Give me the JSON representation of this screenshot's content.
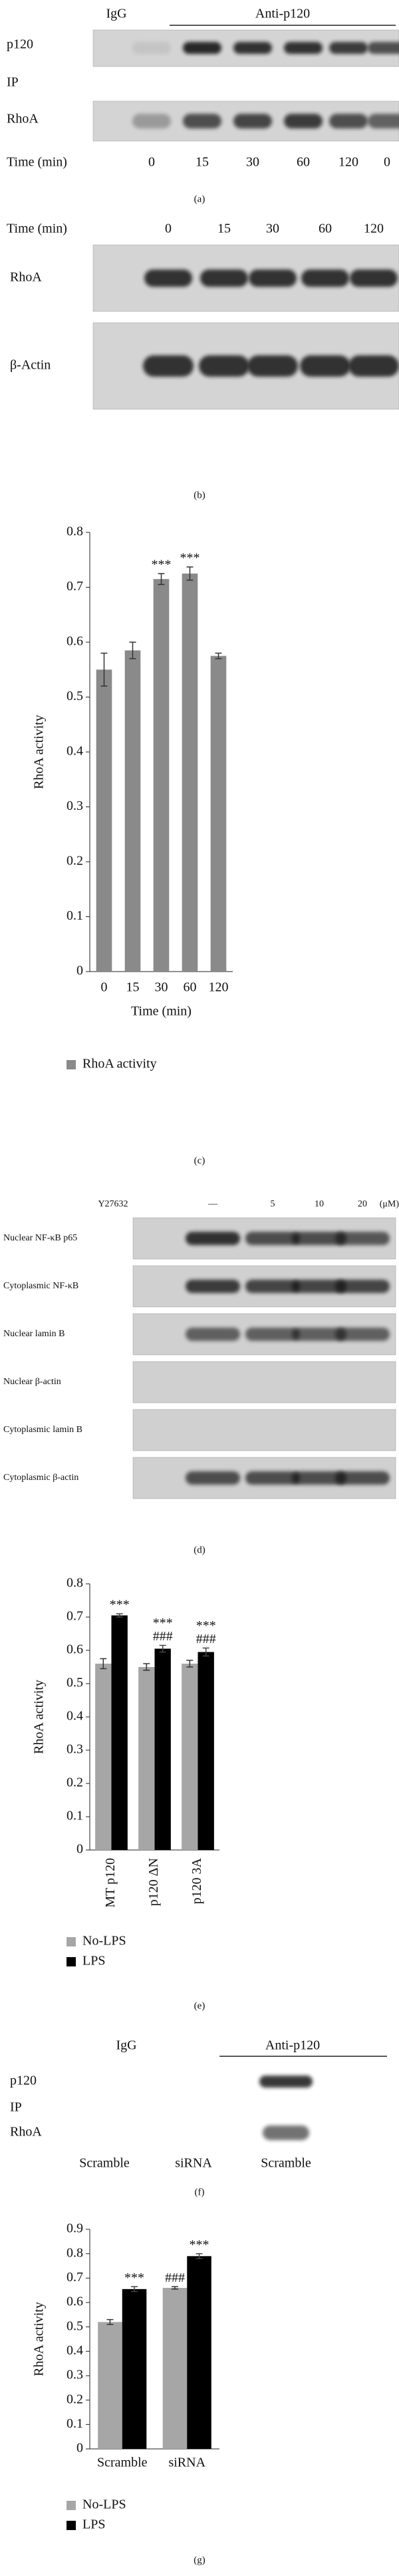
{
  "panel_a": {
    "igg": "IgG",
    "antibody": "Anti-p120",
    "rows": [
      "p120",
      "RhoA"
    ],
    "ip": "IP",
    "lane_title": "Time (min)",
    "lanes": [
      "0",
      "15",
      "30",
      "60",
      "120",
      "0"
    ],
    "caption": "(a)"
  },
  "panel_b": {
    "lane_title": "Time (min)",
    "lanes": [
      "0",
      "15",
      "30",
      "60",
      "120"
    ],
    "rows": [
      "RhoA",
      "β-Actin"
    ],
    "caption": "(b)"
  },
  "panel_d": {
    "treatment": "Y27632",
    "lanes": [
      "—",
      "5",
      "10",
      "20"
    ],
    "unit": "(μM)",
    "rows": [
      "Nuclear NF-κB p65",
      "Cytoplasmic NF-κB",
      "Nuclear lamin B",
      "Nuclear β-actin",
      "Cytoplasmic lamin B",
      "Cytoplasmic β-actin"
    ],
    "caption": "(d)"
  },
  "panel_f": {
    "igg": "IgG",
    "antibody": "Anti-p120",
    "rows": [
      "p120",
      "RhoA"
    ],
    "ip": "IP",
    "lanes": [
      "Scramble",
      "siRNA",
      "Scramble"
    ],
    "caption": "(f)"
  },
  "chart_data": [
    {
      "type": "bar",
      "caption": "(c)",
      "ylabel": "RhoA activity",
      "xlabel": "Time (min)",
      "categories": [
        "0",
        "15",
        "30",
        "60",
        "120"
      ],
      "series": [
        {
          "name": "RhoA activity",
          "color": "#8a8a8a",
          "values": [
            0.55,
            0.585,
            0.715,
            0.725,
            0.575
          ],
          "errors": [
            0.03,
            0.015,
            0.01,
            0.012,
            0.005
          ],
          "annotations": [
            [],
            [],
            [
              "***"
            ],
            [
              "***"
            ],
            []
          ]
        }
      ],
      "ylim": [
        0,
        0.8
      ],
      "yticks": [
        0,
        0.1,
        0.2,
        0.3,
        0.4,
        0.5,
        0.6,
        0.7,
        0.8
      ],
      "legend": "bottom"
    },
    {
      "type": "bar",
      "caption": "(e)",
      "ylabel": "RhoA activity",
      "categories": [
        "MT p120",
        "p120 ΔN",
        "p120 3A"
      ],
      "series": [
        {
          "name": "No-LPS",
          "color": "#a6a6a6",
          "values": [
            0.56,
            0.55,
            0.56
          ],
          "errors": [
            0.015,
            0.01,
            0.01
          ],
          "annotations": [
            [],
            [],
            []
          ]
        },
        {
          "name": "LPS",
          "color": "#000000",
          "values": [
            0.705,
            0.605,
            0.595
          ],
          "errors": [
            0.005,
            0.01,
            0.012
          ],
          "annotations": [
            [
              "***"
            ],
            [
              "###",
              "***"
            ],
            [
              "###",
              "***"
            ]
          ]
        }
      ],
      "ylim": [
        0,
        0.8
      ],
      "yticks": [
        0,
        0.1,
        0.2,
        0.3,
        0.4,
        0.5,
        0.6,
        0.7,
        0.8
      ],
      "legend": "bottom"
    },
    {
      "type": "bar",
      "caption": "(g)",
      "ylabel": "RhoA activity",
      "categories": [
        "Scramble",
        "siRNA"
      ],
      "series": [
        {
          "name": "No-LPS",
          "color": "#a6a6a6",
          "values": [
            0.52,
            0.66
          ],
          "errors": [
            0.01,
            0.005
          ],
          "annotations": [
            [],
            [
              "###"
            ]
          ]
        },
        {
          "name": "LPS",
          "color": "#000000",
          "values": [
            0.655,
            0.79
          ],
          "errors": [
            0.01,
            0.01
          ],
          "annotations": [
            [
              "***"
            ],
            [
              "***"
            ]
          ]
        }
      ],
      "ylim": [
        0,
        0.9
      ],
      "yticks": [
        0,
        0.1,
        0.2,
        0.3,
        0.4,
        0.5,
        0.6,
        0.7,
        0.8,
        0.9
      ],
      "legend": "bottom"
    }
  ]
}
